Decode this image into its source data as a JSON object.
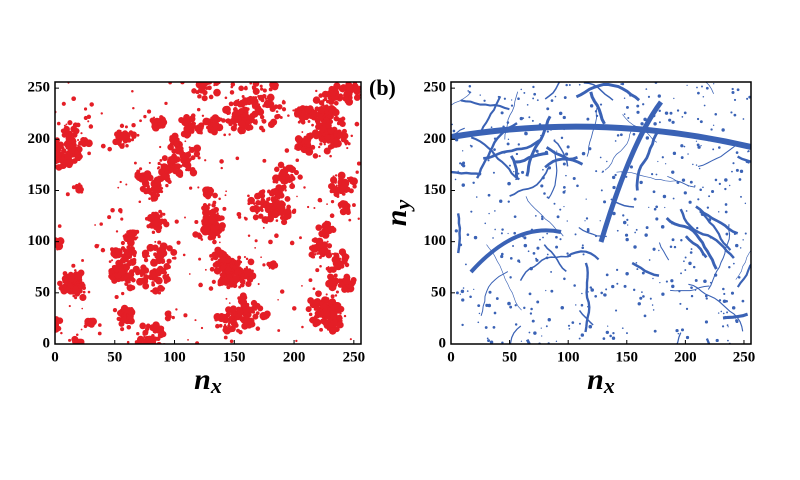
{
  "chart_data": [
    {
      "type": "image",
      "color": "#e41e26",
      "xlim": [
        0,
        256
      ],
      "ylim": [
        0,
        256
      ],
      "xticks": [
        0,
        50,
        100,
        150,
        200,
        250
      ],
      "yticks": [
        0,
        50,
        100,
        150,
        200,
        250
      ],
      "xlabel": {
        "base": "n",
        "sub": "x"
      }
    },
    {
      "type": "image",
      "color": "#3a62b5",
      "panel": "(b)",
      "xlim": [
        0,
        256
      ],
      "ylim": [
        0,
        256
      ],
      "xticks": [
        0,
        50,
        100,
        150,
        200,
        250
      ],
      "yticks": [
        0,
        50,
        100,
        150,
        200,
        250
      ],
      "xlabel": {
        "base": "n",
        "sub": "x"
      },
      "ylabel": {
        "base": "n",
        "sub": "y"
      }
    }
  ]
}
